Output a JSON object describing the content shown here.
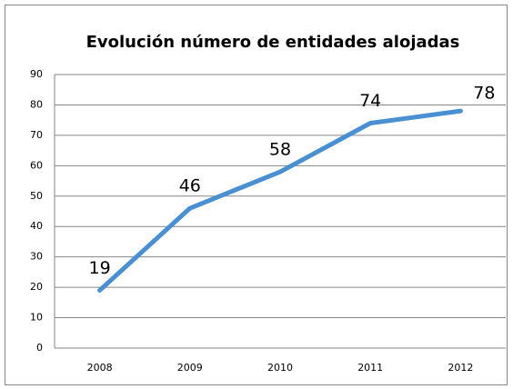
{
  "chart_data": {
    "type": "line",
    "title": "Evolución número de entidades alojadas",
    "categories": [
      "2008",
      "2009",
      "2010",
      "2011",
      "2012"
    ],
    "values": [
      19,
      46,
      58,
      74,
      78
    ],
    "color": "#4a8fd0",
    "ylim": [
      0,
      90
    ],
    "yticks": [
      0,
      10,
      20,
      30,
      40,
      50,
      60,
      70,
      80,
      90
    ],
    "grid": true
  }
}
